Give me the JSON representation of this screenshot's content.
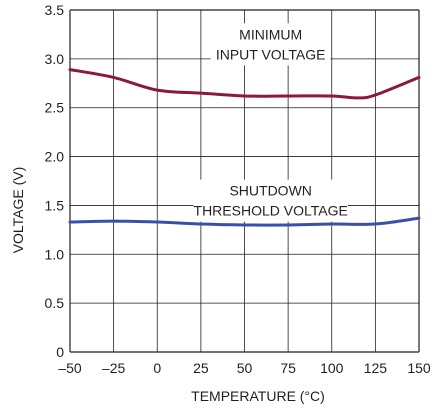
{
  "chart_data": {
    "type": "line",
    "title": "",
    "xlabel": "TEMPERATURE (°C)",
    "ylabel": "VOLTAGE (V)",
    "xlim": [
      -50,
      150
    ],
    "ylim": [
      0,
      3.5
    ],
    "x_ticks": [
      -50,
      -25,
      0,
      25,
      50,
      75,
      100,
      125,
      150
    ],
    "x_tick_labels": [
      "–50",
      "–25",
      "0",
      "25",
      "50",
      "75",
      "100",
      "125",
      "150"
    ],
    "y_ticks": [
      0,
      0.5,
      1.0,
      1.5,
      2.0,
      2.5,
      3.0,
      3.5
    ],
    "y_tick_labels": [
      "0",
      "0.5",
      "1.0",
      "1.5",
      "2.0",
      "2.5",
      "3.0",
      "3.5"
    ],
    "grid": true,
    "series": [
      {
        "name": "MINIMUM INPUT VOLTAGE",
        "color": "#8b1a3a",
        "x": [
          -50,
          -25,
          0,
          25,
          50,
          75,
          100,
          115,
          125,
          150
        ],
        "y": [
          2.89,
          2.81,
          2.68,
          2.65,
          2.62,
          2.62,
          2.62,
          2.6,
          2.63,
          2.81
        ]
      },
      {
        "name": "SHUTDOWN THRESHOLD VOLTAGE",
        "color": "#3a4fa8",
        "x": [
          -50,
          -25,
          0,
          25,
          50,
          75,
          100,
          125,
          150
        ],
        "y": [
          1.33,
          1.34,
          1.33,
          1.31,
          1.3,
          1.3,
          1.31,
          1.31,
          1.37
        ]
      }
    ],
    "annotations": [
      {
        "lines": [
          "MINIMUM",
          "INPUT VOLTAGE"
        ],
        "x": 65,
        "y": 3.2
      },
      {
        "lines": [
          "SHUTDOWN",
          "THRESHOLD VOLTAGE"
        ],
        "x": 65,
        "y": 1.6
      }
    ]
  }
}
